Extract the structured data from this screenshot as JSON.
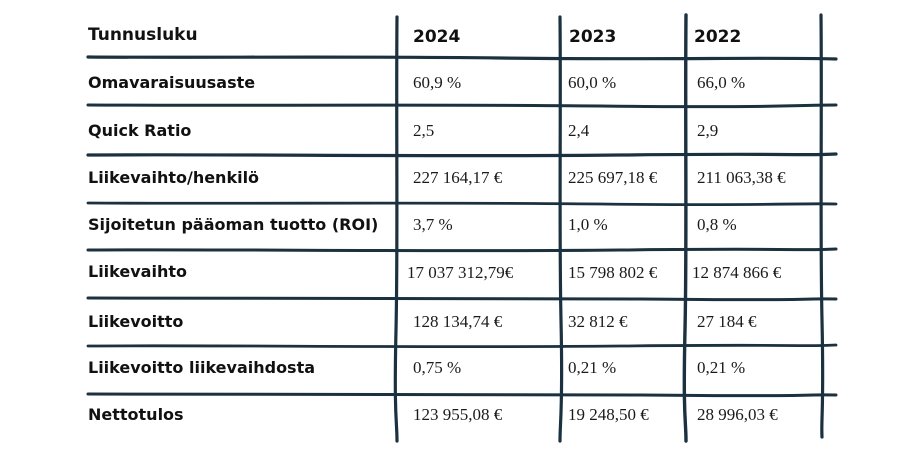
{
  "table": {
    "header": {
      "metric": "Tunnusluku",
      "years": [
        "2024",
        "2023",
        "2022"
      ]
    },
    "rows": [
      {
        "metric": "Omavaraisuusaste",
        "values": [
          "60,9 %",
          "60,0 %",
          "66,0 %"
        ]
      },
      {
        "metric": "Quick Ratio",
        "values": [
          "2,5",
          "2,4",
          "2,9"
        ]
      },
      {
        "metric": "Liikevaihto/henkilö",
        "values": [
          "227 164,17 €",
          "225 697,18 €",
          "211 063,38 €"
        ]
      },
      {
        "metric": "Sijoitetun pääoman tuotto (ROI)",
        "values": [
          "3,7 %",
          "1,0 %",
          "0,8 %"
        ]
      },
      {
        "metric": "Liikevaihto",
        "values": [
          "17 037 312,79€",
          "15 798 802 €",
          "12 874 866 €"
        ]
      },
      {
        "metric": "Liikevoitto",
        "values": [
          "128 134,74 €",
          "32 812 €",
          "27 184 €"
        ]
      },
      {
        "metric": "Liikevoitto liikevaihdosta",
        "values": [
          "0,75 %",
          "0,21 %",
          "0,21 %"
        ]
      },
      {
        "metric": "Nettotulos",
        "values": [
          "123 955,08 €",
          "19 248,50 €",
          "28 996,03 €"
        ]
      }
    ],
    "line_color": "#1b3140"
  }
}
